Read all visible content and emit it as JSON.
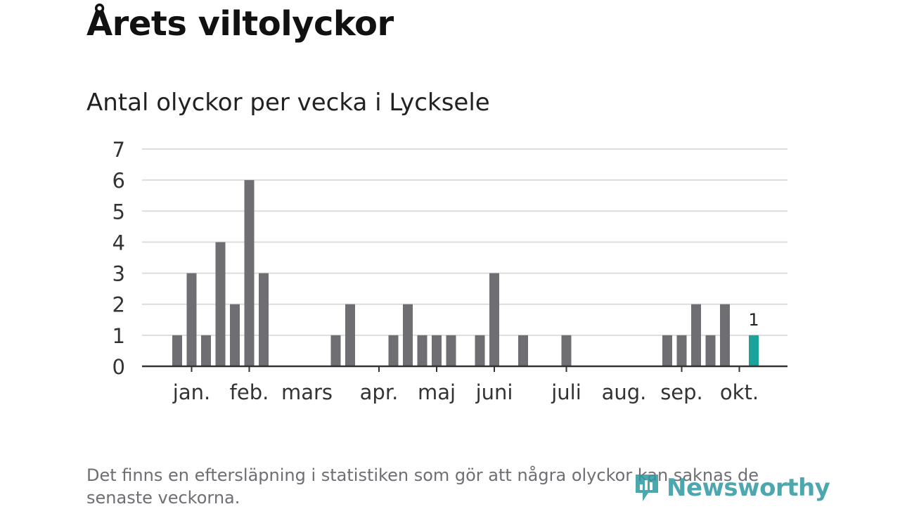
{
  "title": "Årets viltolyckor",
  "subtitle": "Antal olyckor per vecka i Lycksele",
  "footnote": "Det finns en eftersläpning i statistiken som gör att några olyckor kan saknas de senaste veckorna.",
  "logo": {
    "text": "Newsworthy",
    "icon": "newsworthy-logo-icon"
  },
  "colors": {
    "bar": "#6e6e73",
    "highlight": "#1aa39b",
    "grid": "#dddddd",
    "axis": "#333333",
    "logo": "#2d9aa0"
  },
  "chart_data": {
    "type": "bar",
    "title": "Antal olyckor per vecka i Lycksele",
    "xlabel": "",
    "ylabel": "",
    "ylim": [
      0,
      7
    ],
    "yticks": [
      0,
      1,
      2,
      3,
      4,
      5,
      6,
      7
    ],
    "grid": true,
    "weeks": [
      1,
      2,
      3,
      4,
      5,
      6,
      7,
      8,
      9,
      10,
      11,
      12,
      13,
      14,
      15,
      16,
      17,
      18,
      19,
      20,
      21,
      22,
      23,
      24,
      25,
      26,
      27,
      28,
      29,
      30,
      31,
      32,
      33,
      34,
      35,
      36,
      37,
      38,
      39,
      40,
      41,
      42
    ],
    "values": [
      0,
      1,
      3,
      1,
      4,
      2,
      6,
      3,
      0,
      0,
      0,
      0,
      1,
      2,
      0,
      0,
      1,
      2,
      1,
      1,
      1,
      0,
      1,
      3,
      0,
      1,
      0,
      0,
      1,
      0,
      0,
      0,
      0,
      0,
      0,
      1,
      1,
      2,
      1,
      2,
      0,
      1
    ],
    "highlight_week": 42,
    "highlight_label": "1",
    "month_labels": [
      {
        "label": "jan.",
        "week": 3
      },
      {
        "label": "feb.",
        "week": 7
      },
      {
        "label": "mars",
        "week": 11
      },
      {
        "label": "apr.",
        "week": 16
      },
      {
        "label": "maj",
        "week": 20
      },
      {
        "label": "juni",
        "week": 24
      },
      {
        "label": "juli",
        "week": 29
      },
      {
        "label": "aug.",
        "week": 33
      },
      {
        "label": "sep.",
        "week": 37
      },
      {
        "label": "okt.",
        "week": 41
      }
    ],
    "month_ticks_weeks": [
      3,
      7,
      16,
      20,
      24,
      29,
      37,
      41
    ]
  }
}
